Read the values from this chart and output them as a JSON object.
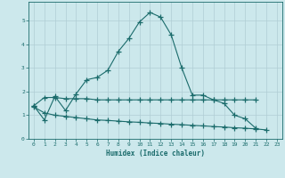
{
  "title": "",
  "xlabel": "Humidex (Indice chaleur)",
  "background_color": "#cce8ec",
  "grid_color": "#b0cdd4",
  "line_color": "#1a6b6b",
  "x_values": [
    0,
    1,
    2,
    3,
    4,
    5,
    6,
    7,
    8,
    9,
    10,
    11,
    12,
    13,
    14,
    15,
    16,
    17,
    18,
    19,
    20,
    21,
    22,
    23
  ],
  "line1": [
    1.4,
    0.8,
    1.8,
    1.2,
    1.9,
    2.5,
    2.6,
    2.9,
    3.7,
    4.25,
    4.95,
    5.35,
    5.15,
    4.4,
    3.0,
    1.85,
    1.85,
    1.65,
    1.5,
    1.0,
    0.85,
    0.45,
    null,
    null
  ],
  "line2": [
    1.4,
    1.75,
    1.75,
    1.7,
    1.7,
    1.7,
    1.65,
    1.65,
    1.65,
    1.65,
    1.65,
    1.65,
    1.65,
    1.65,
    1.65,
    1.65,
    1.65,
    1.65,
    1.65,
    1.65,
    1.65,
    1.65,
    null,
    null
  ],
  "line3": [
    1.35,
    1.1,
    1.0,
    0.95,
    0.9,
    0.85,
    0.8,
    0.78,
    0.75,
    0.72,
    0.7,
    0.67,
    0.65,
    0.62,
    0.6,
    0.57,
    0.55,
    0.52,
    0.5,
    0.47,
    0.45,
    0.42,
    0.38,
    null
  ],
  "xlim": [
    -0.5,
    23.5
  ],
  "ylim": [
    0,
    5.8
  ],
  "yticks": [
    0,
    1,
    2,
    3,
    4,
    5
  ],
  "xticks": [
    0,
    1,
    2,
    3,
    4,
    5,
    6,
    7,
    8,
    9,
    10,
    11,
    12,
    13,
    14,
    15,
    16,
    17,
    18,
    19,
    20,
    21,
    22,
    23
  ]
}
